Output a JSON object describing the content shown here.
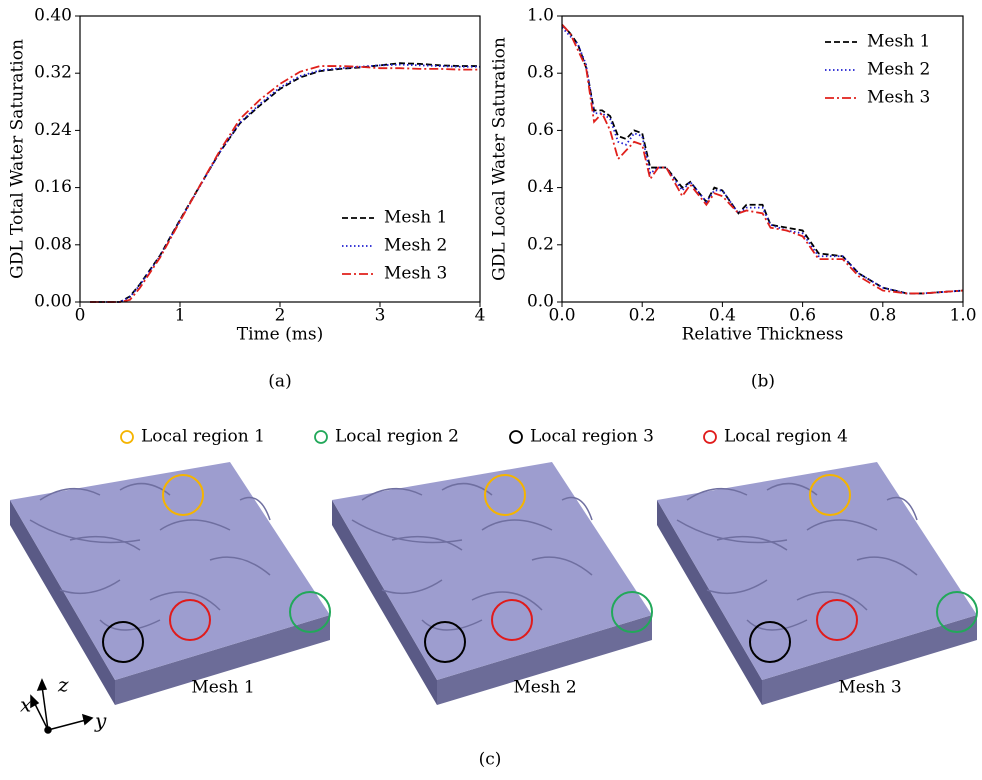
{
  "chart_data": [
    {
      "type": "line",
      "x_label": "Time (ms)",
      "y_label": "GDL Total Water Saturation",
      "xlim": [
        0,
        4
      ],
      "xticks": [
        0,
        1,
        2,
        3,
        4
      ],
      "ylim": [
        0,
        0.4
      ],
      "yticks": [
        {
          "value": 0,
          "label": "0.00"
        },
        0.08,
        0.16,
        0.24,
        0.32,
        {
          "value": 0.4,
          "label": "0.40"
        }
      ],
      "legend": "lower right",
      "x": [
        0.1,
        0.3,
        0.4,
        0.5,
        0.6,
        0.8,
        1.0,
        1.2,
        1.4,
        1.6,
        1.8,
        2.0,
        2.2,
        2.4,
        2.6,
        2.8,
        3.0,
        3.2,
        3.4,
        3.6,
        3.8,
        4.0
      ],
      "series": [
        {
          "name": "Mesh 1",
          "color": "#000000",
          "style": "dashed",
          "values": [
            0,
            0,
            0,
            0.008,
            0.025,
            0.065,
            0.115,
            0.163,
            0.21,
            0.25,
            0.275,
            0.298,
            0.314,
            0.323,
            0.326,
            0.328,
            0.331,
            0.334,
            0.333,
            0.331,
            0.33,
            0.33
          ]
        },
        {
          "name": "Mesh 2",
          "color": "#1f1fd0",
          "style": "dotted",
          "values": [
            0,
            0,
            0,
            0.007,
            0.024,
            0.064,
            0.114,
            0.162,
            0.21,
            0.251,
            0.277,
            0.3,
            0.316,
            0.324,
            0.327,
            0.329,
            0.331,
            0.332,
            0.331,
            0.33,
            0.329,
            0.329
          ]
        },
        {
          "name": "Mesh 3",
          "color": "#e0201b",
          "style": "dashdot",
          "values": [
            0,
            0,
            0,
            0.003,
            0.02,
            0.062,
            0.113,
            0.163,
            0.212,
            0.256,
            0.283,
            0.305,
            0.322,
            0.33,
            0.33,
            0.329,
            0.327,
            0.327,
            0.326,
            0.326,
            0.325,
            0.325
          ]
        }
      ]
    },
    {
      "type": "line",
      "x_label": "Relative Thickness",
      "y_label": "GDL Local Water Saturation",
      "xlim": [
        0,
        1
      ],
      "xticks": [
        {
          "value": 0,
          "label": "0.0"
        },
        0.2,
        0.4,
        0.6,
        0.8,
        {
          "value": 1,
          "label": "1.0"
        }
      ],
      "ylim": [
        0,
        1
      ],
      "yticks": [
        {
          "value": 0,
          "label": "0.0"
        },
        0.2,
        0.4,
        0.6,
        0.8,
        {
          "value": 1,
          "label": "1.0"
        }
      ],
      "legend": "upper right",
      "x": [
        0,
        0.02,
        0.04,
        0.06,
        0.08,
        0.1,
        0.12,
        0.14,
        0.16,
        0.18,
        0.2,
        0.22,
        0.24,
        0.26,
        0.3,
        0.32,
        0.36,
        0.38,
        0.4,
        0.44,
        0.46,
        0.5,
        0.52,
        0.56,
        0.6,
        0.64,
        0.7,
        0.74,
        0.8,
        0.86,
        0.9,
        1.0
      ],
      "series": [
        {
          "name": "Mesh 1",
          "color": "#000000",
          "style": "dashed",
          "values": [
            0.97,
            0.94,
            0.9,
            0.82,
            0.67,
            0.67,
            0.65,
            0.58,
            0.57,
            0.6,
            0.59,
            0.47,
            0.47,
            0.47,
            0.4,
            0.42,
            0.35,
            0.4,
            0.39,
            0.31,
            0.34,
            0.34,
            0.27,
            0.26,
            0.25,
            0.17,
            0.16,
            0.1,
            0.05,
            0.03,
            0.03,
            0.04
          ]
        },
        {
          "name": "Mesh 2",
          "color": "#1f1fd0",
          "style": "dotted",
          "values": [
            0.96,
            0.93,
            0.9,
            0.83,
            0.66,
            0.66,
            0.64,
            0.56,
            0.55,
            0.59,
            0.58,
            0.45,
            0.47,
            0.47,
            0.39,
            0.42,
            0.35,
            0.39,
            0.39,
            0.31,
            0.33,
            0.33,
            0.27,
            0.25,
            0.24,
            0.16,
            0.16,
            0.1,
            0.05,
            0.03,
            0.03,
            0.04
          ]
        },
        {
          "name": "Mesh 3",
          "color": "#e0201b",
          "style": "dashdot",
          "values": [
            0.97,
            0.94,
            0.88,
            0.82,
            0.63,
            0.66,
            0.6,
            0.5,
            0.53,
            0.56,
            0.55,
            0.43,
            0.47,
            0.47,
            0.37,
            0.41,
            0.34,
            0.38,
            0.37,
            0.31,
            0.32,
            0.31,
            0.26,
            0.25,
            0.23,
            0.15,
            0.15,
            0.09,
            0.04,
            0.03,
            0.03,
            0.04
          ]
        }
      ]
    }
  ],
  "panels": {
    "a": "(a)",
    "b": "(b)",
    "c": "(c)"
  },
  "render": {
    "legend": [
      "Local region 1",
      "Local region 2",
      "Local region 3",
      "Local region 4"
    ],
    "meshes": [
      "Mesh 1",
      "Mesh 2",
      "Mesh 3"
    ],
    "axes": [
      "x",
      "y",
      "z"
    ]
  }
}
